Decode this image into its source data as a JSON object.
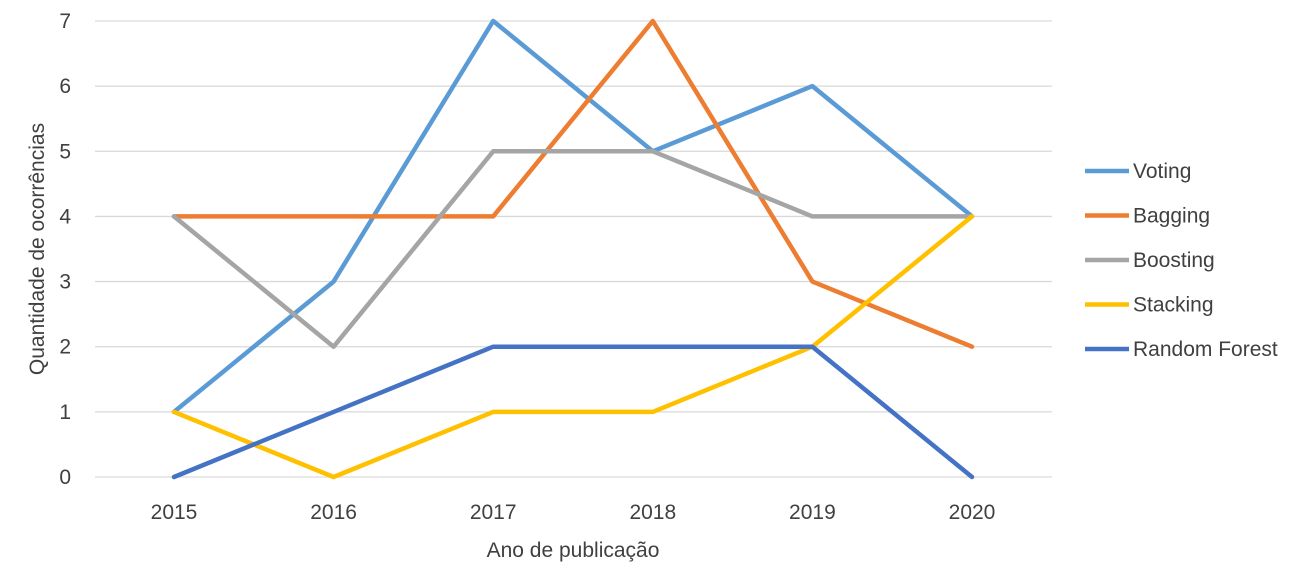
{
  "chart_data": {
    "type": "line",
    "title": "",
    "xlabel": "Ano de publicação",
    "ylabel": "Quantidade de ocorrências",
    "categories": [
      "2015",
      "2016",
      "2017",
      "2018",
      "2019",
      "2020"
    ],
    "ylim": [
      0,
      7
    ],
    "yticks": [
      0,
      1,
      2,
      3,
      4,
      5,
      6,
      7
    ],
    "grid": true,
    "legend_position": "right",
    "series": [
      {
        "name": "Voting",
        "color": "#5B9BD5",
        "values": [
          1,
          3,
          7,
          5,
          6,
          4
        ]
      },
      {
        "name": "Bagging",
        "color": "#ED7D31",
        "values": [
          4,
          4,
          4,
          7,
          3,
          2
        ]
      },
      {
        "name": "Boosting",
        "color": "#A5A5A5",
        "values": [
          4,
          2,
          5,
          5,
          4,
          4
        ]
      },
      {
        "name": "Stacking",
        "color": "#FFC000",
        "values": [
          1,
          0,
          1,
          1,
          2,
          4
        ]
      },
      {
        "name": "Random Forest",
        "color": "#4472C4",
        "values": [
          0,
          1,
          2,
          2,
          2,
          0
        ]
      }
    ]
  }
}
